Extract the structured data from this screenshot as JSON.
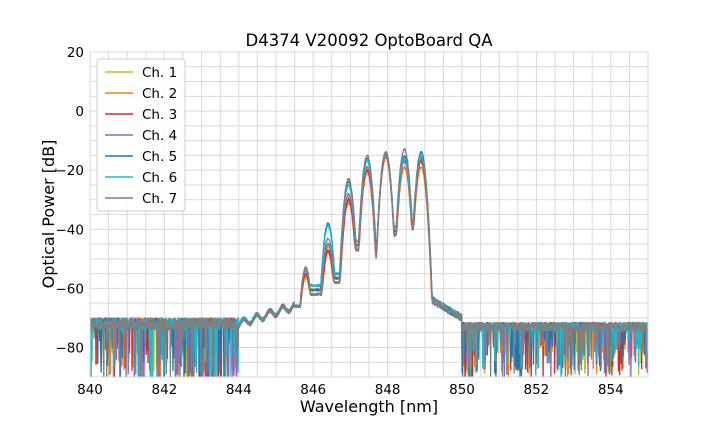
{
  "chart_data": {
    "type": "line",
    "title": "D4374 V20092 OptoBoard QA",
    "xlabel": "Wavelength [nm]",
    "ylabel": "Optical Power [dB]",
    "xlim": [
      840,
      855
    ],
    "ylim": [
      -90,
      20
    ],
    "xticks": [
      840,
      842,
      844,
      846,
      848,
      850,
      852,
      854
    ],
    "yticks": [
      20,
      0,
      -20,
      -40,
      -60,
      -80
    ],
    "grid": true,
    "legend_position": "top-left",
    "peaks": [
      845.8,
      846.4,
      846.95,
      847.45,
      847.95,
      848.45,
      848.9
    ],
    "series": [
      {
        "name": "Ch. 1",
        "color": "#bcbd22",
        "peak_levels": [
          -54,
          -46,
          -29,
          -19,
          -14,
          -16,
          -16
        ]
      },
      {
        "name": "Ch. 2",
        "color": "#ff7f0e",
        "peak_levels": [
          -56,
          -48,
          -31,
          -21,
          -16,
          -19,
          -19
        ]
      },
      {
        "name": "Ch. 3",
        "color": "#d62728",
        "peak_levels": [
          -55,
          -47,
          -30,
          -20,
          -15,
          -17,
          -17
        ]
      },
      {
        "name": "Ch. 4",
        "color": "#9467bd",
        "peak_levels": [
          -54,
          -45,
          -28,
          -19,
          -15,
          -17,
          -16
        ]
      },
      {
        "name": "Ch. 5",
        "color": "#1f77b4",
        "peak_levels": [
          -53,
          -38,
          -24,
          -16,
          -14,
          -15,
          -14
        ]
      },
      {
        "name": "Ch. 6",
        "color": "#17becf",
        "peak_levels": [
          -53,
          -39,
          -25,
          -17,
          -14,
          -16,
          -15
        ]
      },
      {
        "name": "Ch. 7",
        "color": "#7f7f7f",
        "peak_levels": [
          -53,
          -43,
          -23,
          -15,
          -14,
          -13,
          -16
        ]
      }
    ]
  }
}
